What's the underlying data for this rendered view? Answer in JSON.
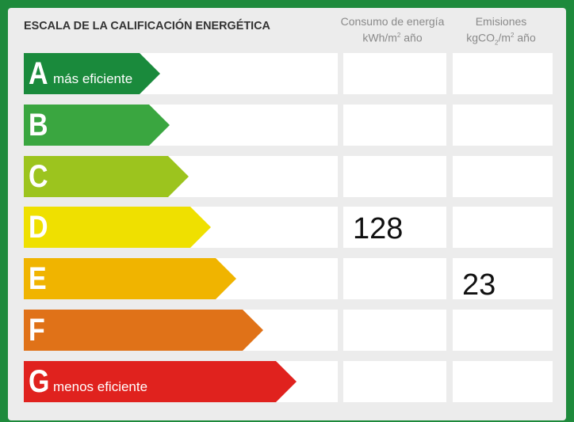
{
  "title": "ESCALA DE LA CALIFICACIÓN ENERGÉTICA",
  "columns": {
    "consumo": {
      "line1": "Consumo de energía",
      "line2_pre": "kWh/m",
      "line2_sup": "2",
      "line2_post": " año"
    },
    "emisiones": {
      "line1": "Emisiones",
      "line2_pre": "kgCO",
      "line2_sub": "2",
      "line2_mid": "/m",
      "line2_sup": "2",
      "line2_post": " año"
    }
  },
  "ratings": [
    {
      "letter": "A",
      "label": "más eficiente",
      "color": "#1a8a3c"
    },
    {
      "letter": "B",
      "label": "",
      "color": "#3aa640"
    },
    {
      "letter": "C",
      "label": "",
      "color": "#9cc41e"
    },
    {
      "letter": "D",
      "label": "",
      "color": "#efe000"
    },
    {
      "letter": "E",
      "label": "",
      "color": "#f0b400"
    },
    {
      "letter": "F",
      "label": "",
      "color": "#e07218"
    },
    {
      "letter": "G",
      "label": "menos eficiente",
      "color": "#e0221e"
    }
  ],
  "values": {
    "consumo": {
      "rating": "D",
      "value": "128"
    },
    "emisiones": {
      "rating": "E",
      "value": "23"
    }
  }
}
